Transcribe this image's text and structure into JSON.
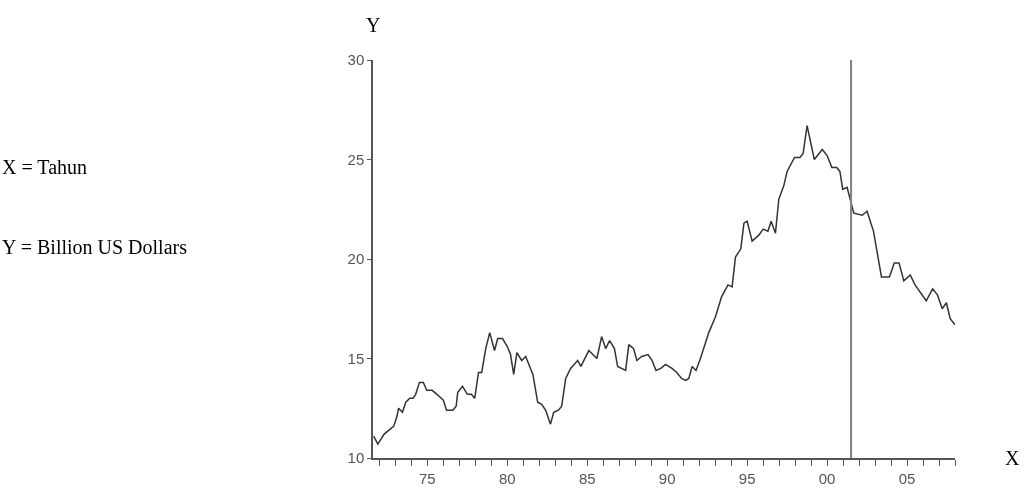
{
  "chart_data": {
    "type": "line",
    "xlabel": "X",
    "ylabel": "Y",
    "annotations": [
      "X = Tahun",
      "Y = Billion US Dollars"
    ],
    "x": [
      1971.64,
      1971.9,
      1972.3,
      1972.6,
      1972.9,
      1973.1,
      1973.2,
      1973.44,
      1973.65,
      1973.9,
      1974.1,
      1974.27,
      1974.5,
      1974.75,
      1974.96,
      1975.3,
      1975.6,
      1976.0,
      1976.2,
      1976.6,
      1976.8,
      1976.9,
      1977.2,
      1977.5,
      1977.75,
      1977.96,
      1978.2,
      1978.4,
      1978.65,
      1978.9,
      1979.2,
      1979.4,
      1979.7,
      1980.0,
      1980.2,
      1980.4,
      1980.6,
      1980.9,
      1981.15,
      1981.6,
      1981.9,
      1982.15,
      1982.4,
      1982.7,
      1982.9,
      1983.2,
      1983.4,
      1983.65,
      1983.96,
      1984.4,
      1984.6,
      1985.1,
      1985.6,
      1985.9,
      1986.15,
      1986.4,
      1986.7,
      1986.9,
      1987.4,
      1987.6,
      1987.9,
      1988.1,
      1988.4,
      1988.8,
      1989.06,
      1989.3,
      1989.6,
      1989.9,
      1990.3,
      1990.6,
      1990.9,
      1991.15,
      1991.35,
      1991.56,
      1991.8,
      1992.08,
      1992.6,
      1993.02,
      1993.4,
      1993.8,
      1994.06,
      1994.27,
      1994.6,
      1994.8,
      1995.0,
      1995.31,
      1995.73,
      1996.0,
      1996.3,
      1996.5,
      1996.77,
      1996.98,
      1997.3,
      1997.5,
      1997.96,
      1998.3,
      1998.5,
      1998.75,
      1999.2,
      1999.7,
      2000.0,
      2000.3,
      2000.6,
      2000.8,
      2000.98,
      2001.25,
      2001.67,
      2002.2,
      2002.5,
      2002.9,
      2003.4,
      2003.9,
      2004.2,
      2004.5,
      2004.8,
      2005.2,
      2005.5,
      2006.2,
      2006.6,
      2006.9,
      2007.2,
      2007.46,
      2007.7,
      2008.0
    ],
    "series": [
      {
        "color": "#333333",
        "values": [
          11.1,
          10.7,
          11.2,
          11.4,
          11.6,
          12.1,
          12.5,
          12.3,
          12.8,
          13.0,
          13.0,
          13.2,
          13.8,
          13.8,
          13.4,
          13.4,
          13.2,
          12.9,
          12.4,
          12.4,
          12.6,
          13.3,
          13.6,
          13.2,
          13.2,
          13.0,
          14.3,
          14.3,
          15.5,
          16.3,
          15.4,
          16.0,
          16.0,
          15.6,
          15.2,
          14.2,
          15.3,
          14.9,
          15.1,
          14.2,
          12.8,
          12.7,
          12.4,
          11.7,
          12.3,
          12.4,
          12.6,
          14.0,
          14.5,
          14.9,
          14.6,
          15.4,
          15.0,
          16.1,
          15.5,
          15.9,
          15.5,
          14.6,
          14.4,
          15.7,
          15.5,
          14.9,
          15.1,
          15.2,
          14.9,
          14.4,
          14.5,
          14.7,
          14.5,
          14.3,
          14.0,
          13.9,
          14.0,
          14.6,
          14.4,
          15.0,
          16.3,
          17.1,
          18.1,
          18.7,
          18.6,
          20.1,
          20.5,
          21.8,
          21.9,
          20.9,
          21.2,
          21.5,
          21.4,
          21.9,
          21.3,
          23.0,
          23.7,
          24.4,
          25.1,
          25.1,
          25.3,
          26.7,
          25.0,
          25.5,
          25.2,
          24.6,
          24.6,
          24.4,
          23.5,
          23.6,
          22.3,
          22.2,
          22.4,
          21.4,
          19.1,
          19.1,
          19.8,
          19.8,
          18.9,
          19.2,
          18.7,
          17.9,
          18.5,
          18.2,
          17.5,
          17.8,
          17.0,
          16.7
        ]
      }
    ],
    "ref_lines": [
      {
        "axis": "x",
        "value": 2001.5,
        "color": "#808080"
      }
    ],
    "xlim": [
      1971.6,
      2008.0
    ],
    "xticks": [
      {
        "value": 1972,
        "label": null
      },
      {
        "value": 1973,
        "label": null
      },
      {
        "value": 1974,
        "label": null
      },
      {
        "value": 1975,
        "label": "75"
      },
      {
        "value": 1976,
        "label": null
      },
      {
        "value": 1977,
        "label": null
      },
      {
        "value": 1978,
        "label": null
      },
      {
        "value": 1979,
        "label": null
      },
      {
        "value": 1980,
        "label": "80"
      },
      {
        "value": 1981,
        "label": null
      },
      {
        "value": 1982,
        "label": null
      },
      {
        "value": 1983,
        "label": null
      },
      {
        "value": 1984,
        "label": null
      },
      {
        "value": 1985,
        "label": "85"
      },
      {
        "value": 1986,
        "label": null
      },
      {
        "value": 1987,
        "label": null
      },
      {
        "value": 1988,
        "label": null
      },
      {
        "value": 1989,
        "label": null
      },
      {
        "value": 1990,
        "label": "90"
      },
      {
        "value": 1991,
        "label": null
      },
      {
        "value": 1992,
        "label": null
      },
      {
        "value": 1993,
        "label": null
      },
      {
        "value": 1994,
        "label": null
      },
      {
        "value": 1995,
        "label": "95"
      },
      {
        "value": 1996,
        "label": null
      },
      {
        "value": 1997,
        "label": null
      },
      {
        "value": 1998,
        "label": null
      },
      {
        "value": 1999,
        "label": null
      },
      {
        "value": 2000,
        "label": "00"
      },
      {
        "value": 2001,
        "label": null
      },
      {
        "value": 2002,
        "label": null
      },
      {
        "value": 2003,
        "label": null
      },
      {
        "value": 2004,
        "label": null
      },
      {
        "value": 2005,
        "label": "05"
      },
      {
        "value": 2006,
        "label": null
      },
      {
        "value": 2007,
        "label": null
      },
      {
        "value": 2008,
        "label": null
      }
    ],
    "ylim": [
      10,
      30
    ],
    "yticks": [
      10,
      15,
      20,
      25,
      30
    ],
    "marker": "none",
    "line_style": "solid"
  }
}
